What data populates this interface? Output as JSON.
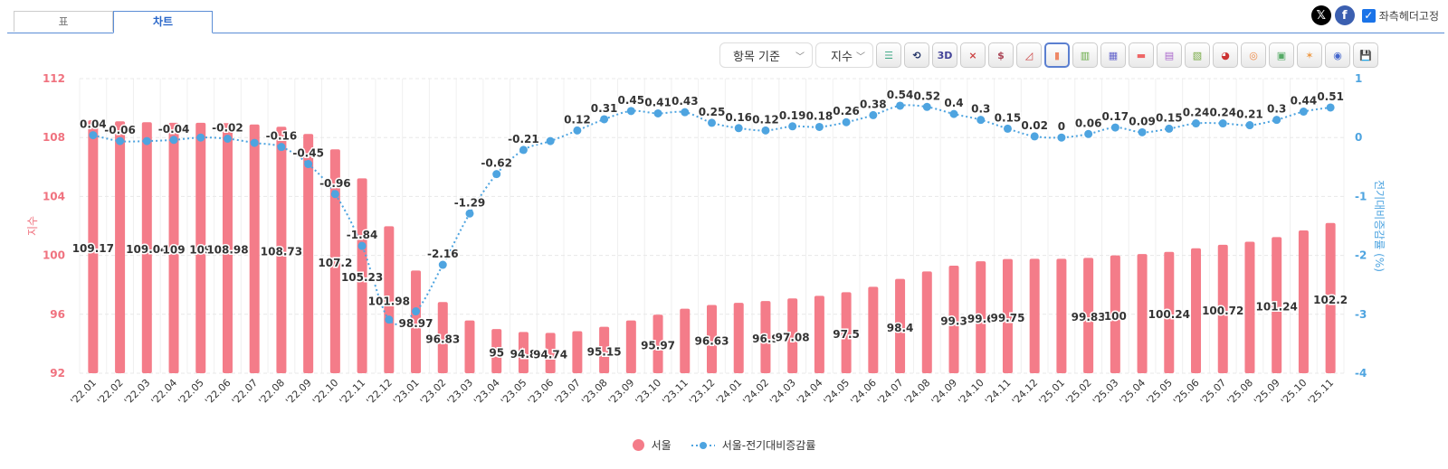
{
  "tabs": [
    {
      "label": "표",
      "active": false
    },
    {
      "label": "차트",
      "active": true
    }
  ],
  "header": {
    "x_icon": "x-logo-icon",
    "facebook_icon": "facebook-icon",
    "fixed_header_label": "좌측헤더고정",
    "fixed_header_checked": true
  },
  "toolbar": {
    "basis_select": "항목 기준",
    "measure_select": "지수",
    "buttons": [
      {
        "icon": "legend-list-icon"
      },
      {
        "icon": "rotate-icon"
      },
      {
        "icon": "3d-icon",
        "label": "3D"
      },
      {
        "icon": "line-chart-icon"
      },
      {
        "icon": "line-chart-dollar-icon"
      },
      {
        "icon": "area-line-chart-icon"
      },
      {
        "icon": "bar-chart-icon",
        "active": true
      },
      {
        "icon": "stacked-bar-chart-icon"
      },
      {
        "icon": "stacked-bar-percent-icon"
      },
      {
        "icon": "horizontal-bar-icon"
      },
      {
        "icon": "horizontal-stacked-bar-icon"
      },
      {
        "icon": "horizontal-stacked-percent-icon"
      },
      {
        "icon": "pie-chart-icon"
      },
      {
        "icon": "donut-chart-icon"
      },
      {
        "icon": "treemap-icon"
      },
      {
        "icon": "radar-chart-icon"
      },
      {
        "icon": "polar-chart-icon"
      },
      {
        "icon": "save-icon"
      }
    ]
  },
  "chart_data": {
    "type": "bar+line",
    "categories": [
      "'22.01",
      "'22.02",
      "'22.03",
      "'22.04",
      "'22.05",
      "'22.06",
      "'22.07",
      "'22.08",
      "'22.09",
      "'22.10",
      "'22.11",
      "'22.12",
      "'23.01",
      "'23.02",
      "'23.03",
      "'23.04",
      "'23.05",
      "'23.06",
      "'23.07",
      "'23.08",
      "'23.09",
      "'23.10",
      "'23.11",
      "'23.12",
      "'24.01",
      "'24.02",
      "'24.03",
      "'24.04",
      "'24.05",
      "'24.06",
      "'24.07",
      "'24.08",
      "'24.09",
      "'24.10",
      "'24.11",
      "'24.12",
      "'25.01",
      "'25.02",
      "'25.03",
      "'25.04",
      "'25.05",
      "'25.06",
      "'25.07",
      "'25.08",
      "'25.09",
      "'25.10",
      "'25.11"
    ],
    "left_axis": {
      "label": "지수",
      "ylim": [
        92,
        112
      ],
      "ticks": [
        "92",
        "96",
        "100",
        "104",
        "108",
        "112"
      ],
      "color": "#f0727f"
    },
    "right_axis": {
      "label": "전기대비증감률 (%)",
      "ylim": [
        -4,
        1
      ],
      "ticks": [
        "-4",
        "-3",
        "-2",
        "-1",
        "0",
        "1"
      ],
      "color": "#4ea4e0"
    },
    "grid": true,
    "legend_position": "bottom",
    "series": [
      {
        "name": "서울",
        "type": "bar",
        "axis": "left",
        "color": "#f47c89",
        "values": [
          109.17,
          109.1,
          109.04,
          109,
          109,
          108.98,
          108.89,
          108.73,
          108.24,
          107.2,
          105.23,
          101.98,
          98.97,
          96.83,
          95.58,
          95,
          94.8,
          94.74,
          94.85,
          95.15,
          95.58,
          95.97,
          96.38,
          96.63,
          96.78,
          96.9,
          97.08,
          97.25,
          97.5,
          97.87,
          98.4,
          98.91,
          99.3,
          99.6,
          99.75,
          99.77,
          99.77,
          99.83,
          100,
          100.09,
          100.24,
          100.48,
          100.72,
          100.93,
          101.24,
          101.69,
          102.2
        ],
        "data_labels": [
          "109.17",
          "",
          "109.04",
          "109",
          "109",
          "108.98",
          "",
          "108.73",
          "",
          "107.2",
          "105.23",
          "101.98",
          "98.97",
          "96.83",
          "",
          "95",
          "94.8",
          "94.74",
          "",
          "95.15",
          "",
          "95.97",
          "",
          "96.63",
          "",
          "96.9",
          "97.08",
          "",
          "97.5",
          "",
          "98.4",
          "",
          "99.3",
          "99.6",
          "99.75",
          "",
          "",
          "99.83",
          "100",
          "",
          "100.24",
          "",
          "100.72",
          "",
          "101.24",
          "",
          "102.2"
        ]
      },
      {
        "name": "서울-전기대비증감률",
        "type": "line",
        "axis": "right",
        "color": "#4ea4e0",
        "style": "dotted",
        "values": [
          0.04,
          -0.06,
          -0.06,
          -0.04,
          0,
          -0.02,
          -0.09,
          -0.16,
          -0.45,
          -0.96,
          -1.84,
          -3.09,
          -2.95,
          -2.16,
          -1.29,
          -0.62,
          -0.21,
          -0.06,
          0.12,
          0.31,
          0.45,
          0.41,
          0.43,
          0.25,
          0.16,
          0.12,
          0.19,
          0.18,
          0.26,
          0.38,
          0.54,
          0.52,
          0.4,
          0.3,
          0.15,
          0.02,
          0,
          0.06,
          0.17,
          0.09,
          0.15,
          0.24,
          0.24,
          0.21,
          0.3,
          0.44,
          0.51
        ],
        "data_labels": [
          "0.04",
          "-0.06",
          "",
          "-0.04",
          "",
          "-0.02",
          "",
          "-0.16",
          "-0.45",
          "-0.96",
          "-1.84",
          "",
          "",
          "-2.16",
          "-1.29",
          "-0.62",
          "-0.21",
          "",
          "0.12",
          "0.31",
          "0.45",
          "0.41",
          "0.43",
          "0.25",
          "0.16",
          "0.12",
          "0.19",
          "0.18",
          "0.26",
          "0.38",
          "0.54",
          "0.52",
          "0.4",
          "0.3",
          "0.15",
          "0.02",
          "0",
          "0.06",
          "0.17",
          "0.09",
          "0.15",
          "0.24",
          "0.24",
          "0.21",
          "0.3",
          "0.44",
          "0.51"
        ]
      }
    ]
  }
}
